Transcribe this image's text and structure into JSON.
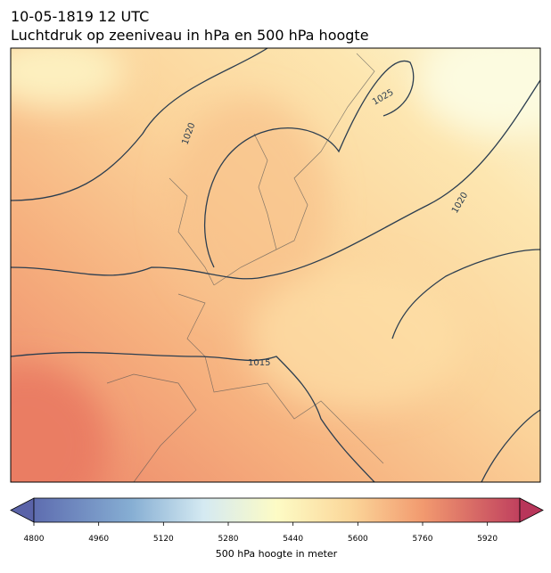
{
  "header": {
    "title": "10-05-1819 12 UTC",
    "subtitle": "Luchtdruk op zeeniveau in hPa en 500 hPa hoogte"
  },
  "map": {
    "contour_labels": [
      "1020",
      "1025",
      "1020",
      "1015"
    ]
  },
  "colorbar": {
    "label": "500 hPa hoogte in meter",
    "lim": [
      4800,
      6000
    ],
    "ticks": [
      4800,
      4960,
      5120,
      5280,
      5440,
      5600,
      5760,
      5920
    ]
  }
}
